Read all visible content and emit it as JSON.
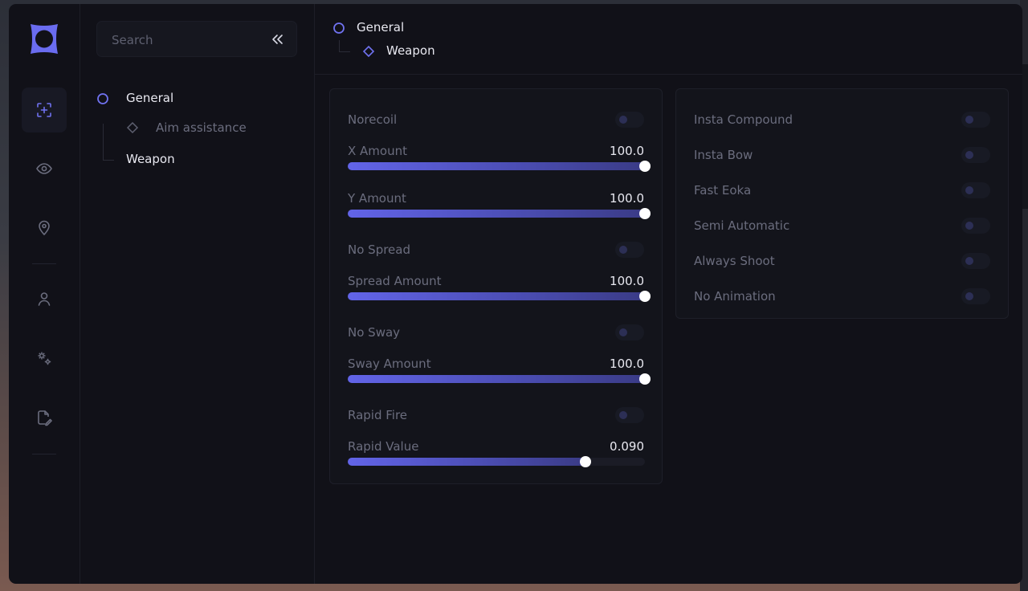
{
  "colors": {
    "accent": "#6264e8",
    "window_bg": "#111118",
    "muted_text": "#6b6d7e",
    "text": "#e8e8f0"
  },
  "rail": {
    "items": [
      {
        "icon": "crosshair-add-icon",
        "active": true
      },
      {
        "icon": "eye-icon",
        "active": false
      },
      {
        "icon": "map-pin-icon",
        "active": false
      },
      {
        "icon": "user-icon",
        "active": false
      },
      {
        "icon": "gears-icon",
        "active": false
      },
      {
        "icon": "file-edit-icon",
        "active": false
      }
    ]
  },
  "search": {
    "placeholder": "Search"
  },
  "nav": {
    "general": "General",
    "aim_assistance": "Aim assistance",
    "weapon": "Weapon"
  },
  "breadcrumb": {
    "parent": "General",
    "current": "Weapon"
  },
  "weapon_panel": {
    "norecoil": {
      "label": "Norecoil",
      "on": false
    },
    "x_amount": {
      "label": "X Amount",
      "value": "100.0",
      "fraction": 1.0
    },
    "y_amount": {
      "label": "Y Amount",
      "value": "100.0",
      "fraction": 1.0
    },
    "no_spread": {
      "label": "No Spread",
      "on": false
    },
    "spread_amount": {
      "label": "Spread Amount",
      "value": "100.0",
      "fraction": 1.0
    },
    "no_sway": {
      "label": "No Sway",
      "on": false
    },
    "sway_amount": {
      "label": "Sway Amount",
      "value": "100.0",
      "fraction": 1.0
    },
    "rapid_fire": {
      "label": "Rapid Fire",
      "on": false
    },
    "rapid_value": {
      "label": "Rapid Value",
      "value": "0.090",
      "fraction": 0.8
    }
  },
  "misc_panel": {
    "insta_compound": {
      "label": "Insta Compound",
      "on": false
    },
    "insta_bow": {
      "label": "Insta Bow",
      "on": false
    },
    "fast_eoka": {
      "label": "Fast Eoka",
      "on": false
    },
    "semi_automatic": {
      "label": "Semi Automatic",
      "on": false
    },
    "always_shoot": {
      "label": "Always Shoot",
      "on": false
    },
    "no_animation": {
      "label": "No Animation",
      "on": false
    }
  }
}
